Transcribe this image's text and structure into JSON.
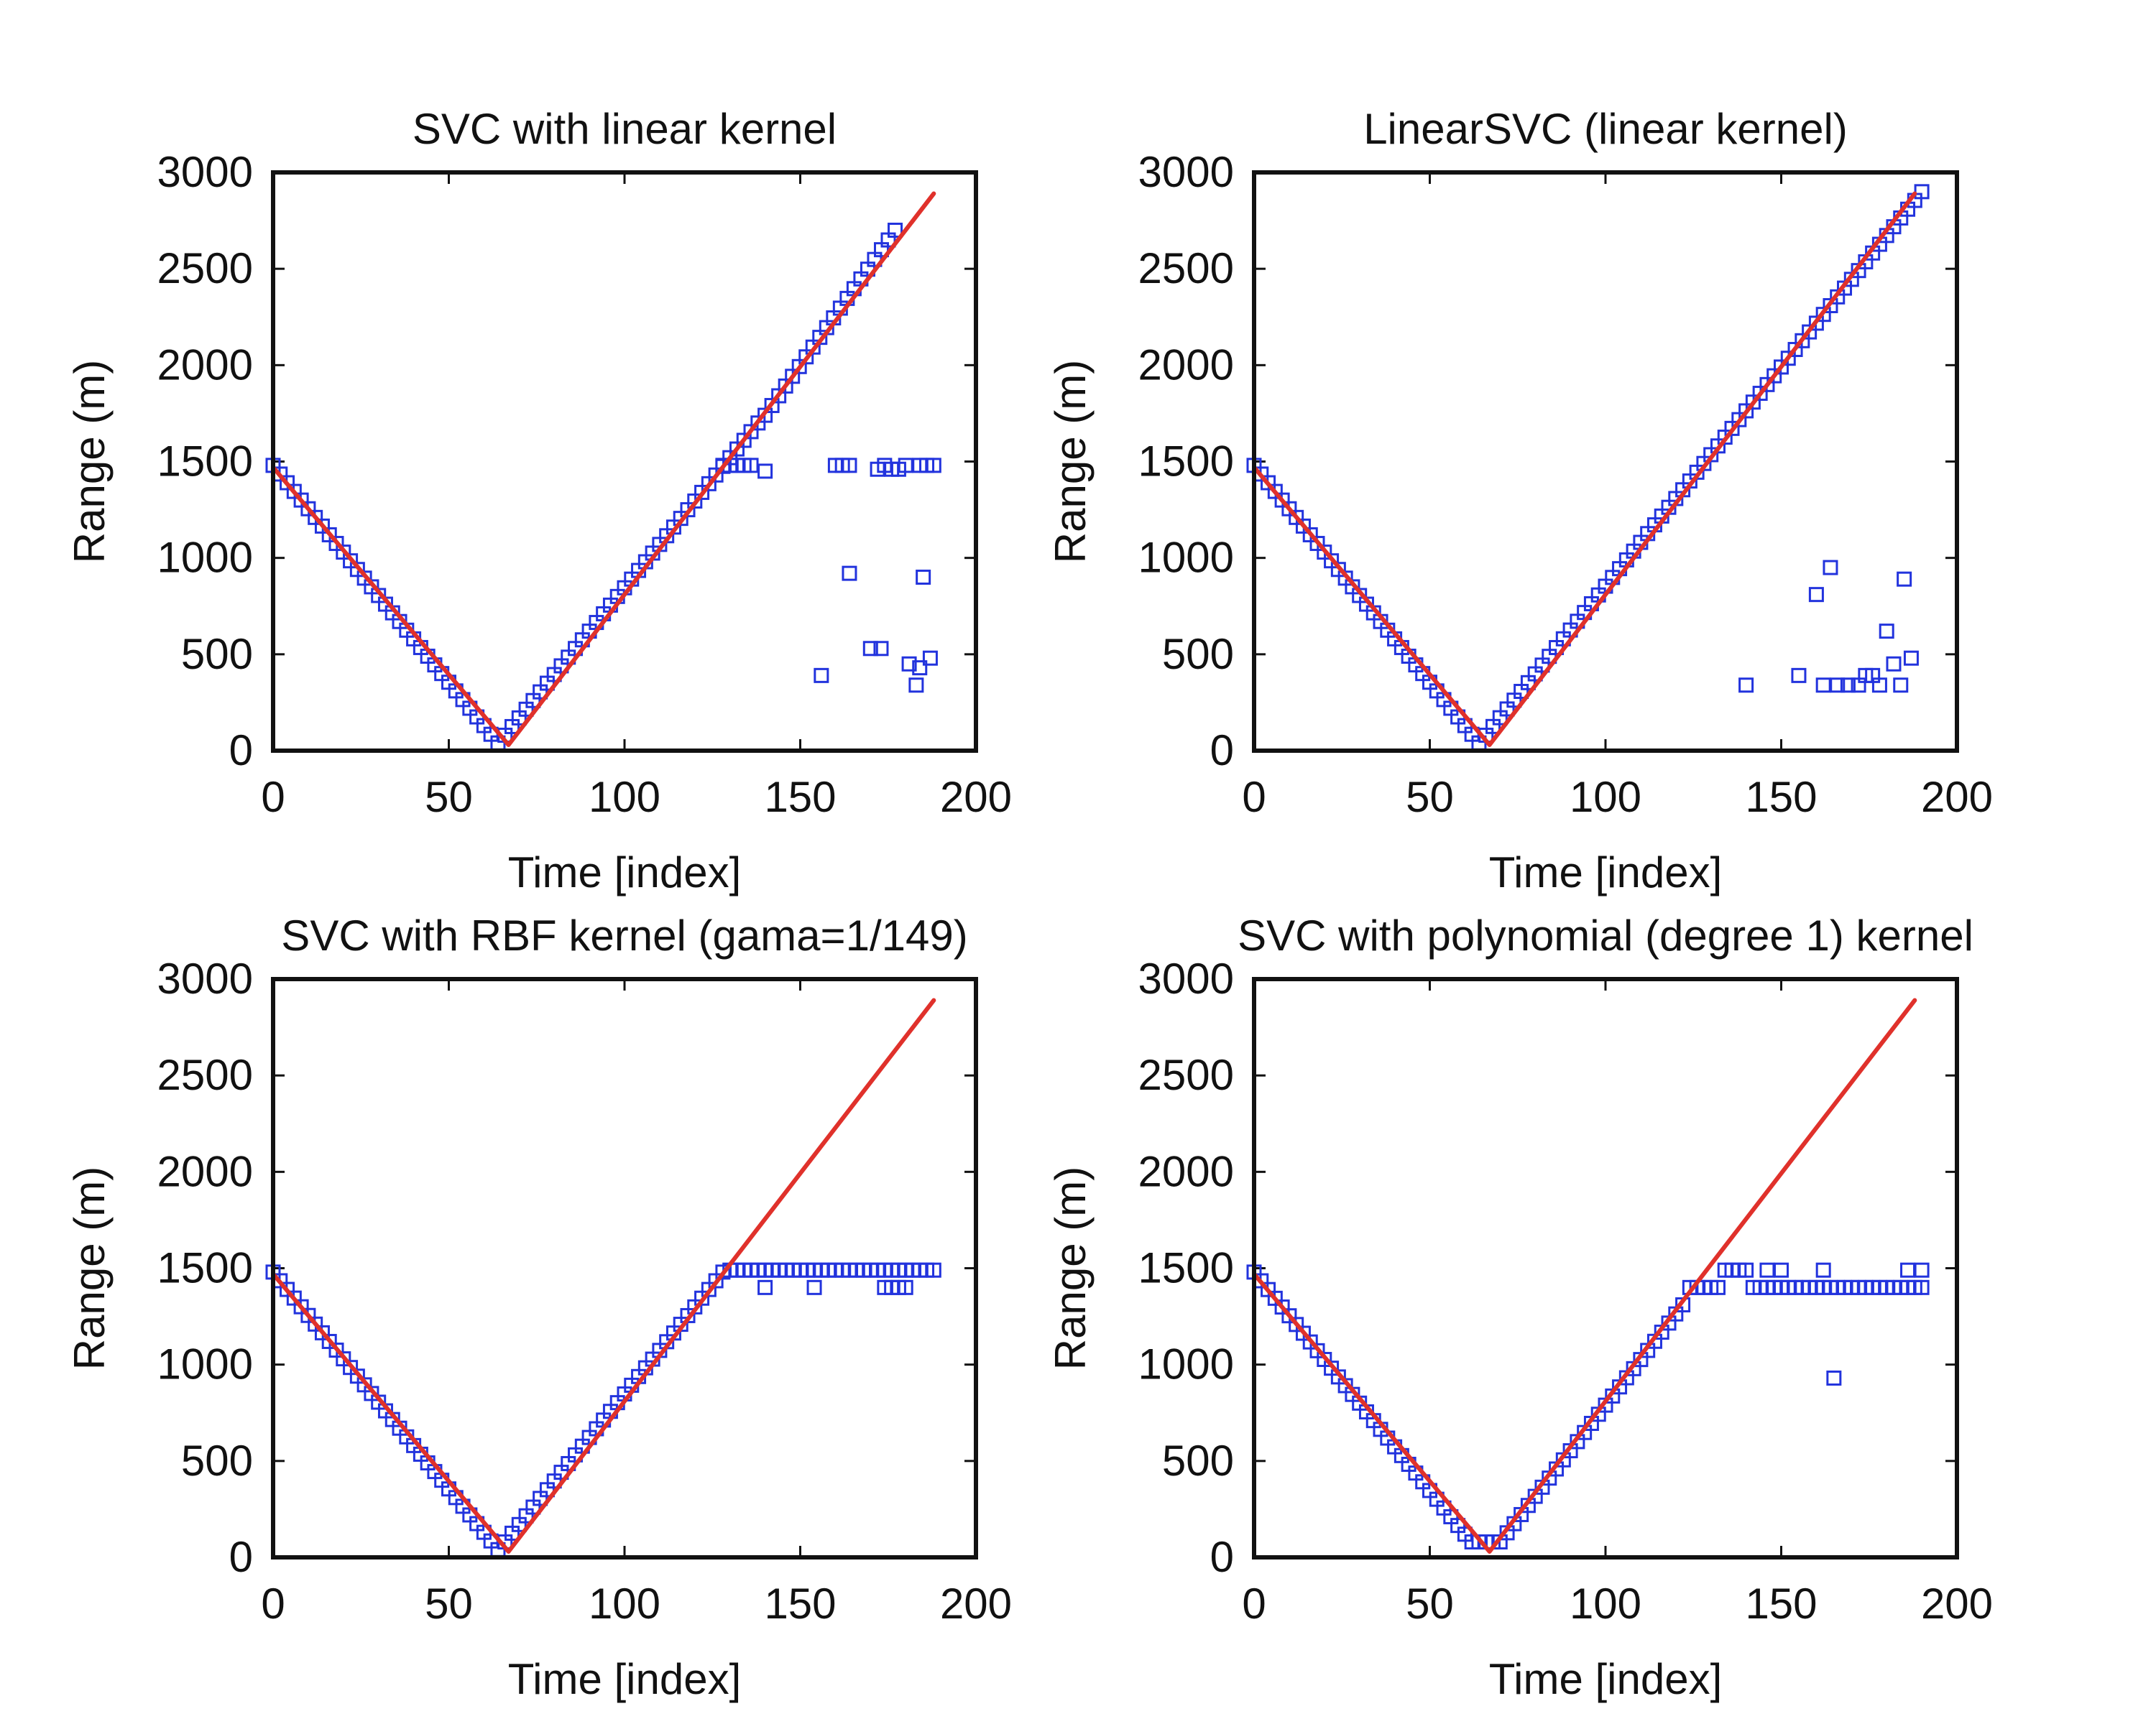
{
  "colors": {
    "marker": "#2233dd",
    "line": "#e0312b",
    "axis": "#111111"
  },
  "chart_data": [
    {
      "type": "scatter",
      "title": "SVC with linear kernel",
      "xlabel": "Time [index]",
      "ylabel": "Range (m)",
      "xlim": [
        0,
        200
      ],
      "ylim": [
        0,
        3000
      ],
      "xticks": [
        0,
        50,
        100,
        150,
        200
      ],
      "yticks": [
        0,
        500,
        1000,
        1500,
        2000,
        2500,
        3000
      ],
      "grid": false,
      "series": [
        {
          "kind": "markers",
          "marker": "square",
          "segments": [
            [
              0,
              1480,
              64,
              40
            ],
            [
              66,
              80,
              138,
              1700
            ],
            [
              140,
              1740,
              177,
              2700
            ]
          ],
          "points": [
            [
              128,
              1480
            ],
            [
              130,
              1480
            ],
            [
              132,
              1480
            ],
            [
              134,
              1480
            ],
            [
              136,
              1480
            ],
            [
              140,
              1450
            ],
            [
              160,
              1480
            ],
            [
              162,
              1480
            ],
            [
              164,
              1480
            ],
            [
              172,
              1460
            ],
            [
              174,
              1480
            ],
            [
              176,
              1460
            ],
            [
              178,
              1460
            ],
            [
              180,
              1480
            ],
            [
              184,
              1480
            ],
            [
              186,
              1480
            ],
            [
              188,
              1480
            ],
            [
              164,
              920
            ],
            [
              185,
              900
            ],
            [
              170,
              530
            ],
            [
              173,
              530
            ],
            [
              156,
              390
            ],
            [
              181,
              450
            ],
            [
              184,
              430
            ],
            [
              187,
              480
            ],
            [
              183,
              340
            ]
          ]
        },
        {
          "kind": "line",
          "points": [
            [
              0,
              1470
            ],
            [
              67,
              30
            ],
            [
              188,
              2890
            ]
          ]
        }
      ]
    },
    {
      "type": "scatter",
      "title": "LinearSVC (linear kernel)",
      "xlabel": "Time [index]",
      "ylabel": "Range (m)",
      "xlim": [
        0,
        200
      ],
      "ylim": [
        0,
        3000
      ],
      "xticks": [
        0,
        50,
        100,
        150,
        200
      ],
      "yticks": [
        0,
        500,
        1000,
        1500,
        2000,
        2500,
        3000
      ],
      "grid": false,
      "series": [
        {
          "kind": "markers",
          "marker": "square",
          "segments": [
            [
              0,
              1480,
              64,
              40
            ],
            [
              66,
              80,
              190,
              2900
            ]
          ],
          "points": [
            [
              140,
              340
            ],
            [
              155,
              390
            ],
            [
              160,
              810
            ],
            [
              164,
              950
            ],
            [
              162,
              340
            ],
            [
              166,
              340
            ],
            [
              169,
              340
            ],
            [
              172,
              340
            ],
            [
              174,
              390
            ],
            [
              176,
              390
            ],
            [
              178,
              340
            ],
            [
              180,
              620
            ],
            [
              182,
              450
            ],
            [
              184,
              340
            ],
            [
              185,
              890
            ],
            [
              187,
              480
            ]
          ]
        },
        {
          "kind": "line",
          "points": [
            [
              0,
              1470
            ],
            [
              67,
              30
            ],
            [
              188,
              2890
            ]
          ]
        }
      ]
    },
    {
      "type": "scatter",
      "title": "SVC with RBF kernel (gama=1/149)",
      "xlabel": "Time [index]",
      "ylabel": "Range (m)",
      "xlim": [
        0,
        200
      ],
      "ylim": [
        0,
        3000
      ],
      "xticks": [
        0,
        50,
        100,
        150,
        200
      ],
      "yticks": [
        0,
        500,
        1000,
        1500,
        2000,
        2500,
        3000
      ],
      "grid": false,
      "series": [
        {
          "kind": "markers",
          "marker": "square",
          "segments": [
            [
              0,
              1480,
              64,
              40
            ],
            [
              66,
              80,
              128,
              1480
            ],
            [
              130,
              1490,
              188,
              1490
            ]
          ],
          "points": [
            [
              140,
              1400
            ],
            [
              154,
              1400
            ],
            [
              174,
              1400
            ],
            [
              176,
              1400
            ],
            [
              178,
              1400
            ],
            [
              180,
              1400
            ]
          ]
        },
        {
          "kind": "line",
          "points": [
            [
              0,
              1470
            ],
            [
              67,
              30
            ],
            [
              188,
              2890
            ]
          ]
        }
      ]
    },
    {
      "type": "scatter",
      "title": "SVC with polynomial (degree 1) kernel",
      "xlabel": "Time [index]",
      "ylabel": "Range (m)",
      "xlim": [
        0,
        200
      ],
      "ylim": [
        0,
        3000
      ],
      "xticks": [
        0,
        50,
        100,
        150,
        200
      ],
      "yticks": [
        0,
        500,
        1000,
        1500,
        2000,
        2500,
        3000
      ],
      "grid": false,
      "series": [
        {
          "kind": "markers",
          "marker": "square",
          "segments": [
            [
              0,
              1480,
              60,
              120
            ],
            [
              70,
              80,
              122,
              1310
            ],
            [
              124,
              1400,
              132,
              1400
            ],
            [
              134,
              1490,
              140,
              1490
            ],
            [
              142,
              1400,
              190,
              1400
            ]
          ],
          "points": [
            [
              62,
              80
            ],
            [
              64,
              80
            ],
            [
              66,
              80
            ],
            [
              68,
              80
            ],
            [
              146,
              1490
            ],
            [
              150,
              1490
            ],
            [
              162,
              1490
            ],
            [
              186,
              1490
            ],
            [
              190,
              1490
            ],
            [
              165,
              930
            ]
          ]
        },
        {
          "kind": "line",
          "points": [
            [
              0,
              1470
            ],
            [
              67,
              30
            ],
            [
              188,
              2890
            ]
          ]
        }
      ]
    }
  ]
}
